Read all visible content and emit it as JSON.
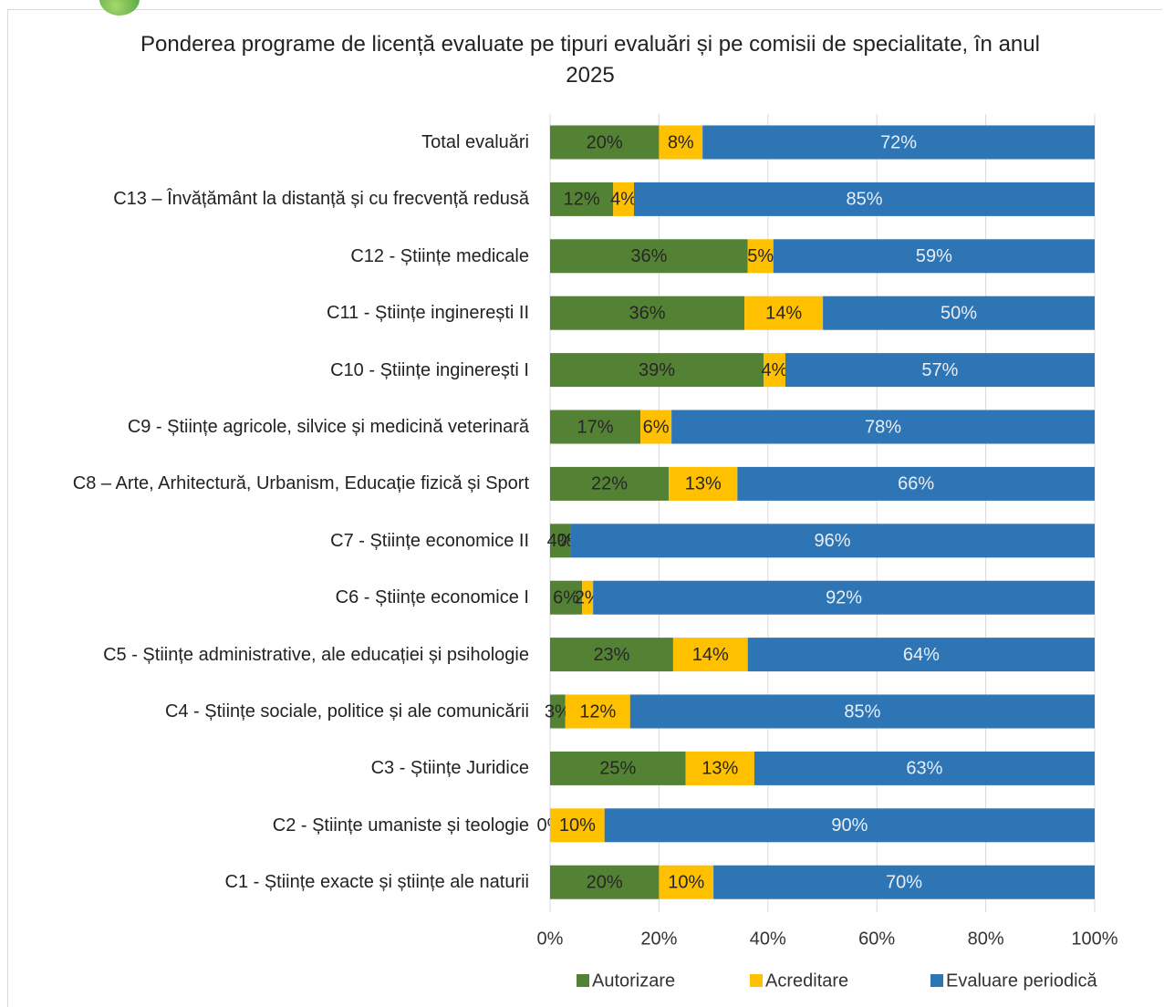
{
  "chart_data": {
    "type": "stacked-barh",
    "title": "Ponderea programe de licență evaluate pe tipuri evaluări și pe comisii de specialitate, în anul 2025",
    "categories": [
      "Total evaluări",
      "C13 – Învățământ la distanță și cu frecvență redusă",
      "C12 - Științe medicale",
      "C11 - Științe inginerești II",
      "C10 - Științe inginerești I",
      "C9 - Științe agricole, silvice și medicină veterinară",
      "C8 – Arte, Arhitectură, Urbanism, Educație fizică și Sport",
      "C7 - Științe economice II",
      "C6 - Științe economice I",
      "C5 - Științe administrative, ale educației și psihologie",
      "C4 - Științe sociale, politice și ale comunicării",
      "C3 - Științe Juridice",
      "C2 - Științe umaniste și teologie",
      "C1 - Științe exacte și științe ale naturii"
    ],
    "series": [
      {
        "name": "Autorizare",
        "color": "#548235",
        "label_color": "#262626",
        "values": [
          20,
          11.6,
          36.3,
          35.7,
          39.2,
          16.6,
          21.8,
          3.7,
          5.9,
          22.6,
          2.8,
          24.9,
          0,
          20
        ],
        "value_labels": [
          "20%",
          "12%",
          "36%",
          "36%",
          "39%",
          "17%",
          "22%",
          "4%",
          "6%",
          "23%",
          "3%",
          "25%",
          "0%",
          "20%"
        ]
      },
      {
        "name": "Acreditare",
        "color": "#ffc000",
        "label_color": "#262626",
        "values": [
          8,
          3.8,
          4.7,
          14.4,
          4,
          5.7,
          12.6,
          0,
          2,
          13.7,
          11.9,
          12.6,
          10,
          10
        ],
        "value_labels": [
          "8%",
          "4%",
          "5%",
          "14%",
          "4%",
          "6%",
          "13%",
          "0%",
          "2%",
          "14%",
          "12%",
          "13%",
          "10%",
          "10%"
        ]
      },
      {
        "name": "Evaluare periodică",
        "color": "#2e75b6",
        "label_color": "#e8eef6",
        "values": [
          72,
          84.6,
          59,
          49.9,
          56.8,
          77.7,
          65.6,
          96.3,
          92.1,
          63.7,
          85.3,
          62.5,
          90,
          70
        ],
        "value_labels": [
          "72%",
          "85%",
          "59%",
          "50%",
          "57%",
          "78%",
          "66%",
          "96%",
          "92%",
          "64%",
          "85%",
          "63%",
          "90%",
          "70%"
        ]
      }
    ],
    "xlim": [
      0,
      100
    ],
    "xticks": [
      {
        "value": 0,
        "label": "0%"
      },
      {
        "value": 20,
        "label": "20%"
      },
      {
        "value": 40,
        "label": "40%"
      },
      {
        "value": 60,
        "label": "60%"
      },
      {
        "value": 80,
        "label": "80%"
      },
      {
        "value": 100,
        "label": "100%"
      }
    ],
    "grid": true,
    "legend": "bottom"
  }
}
